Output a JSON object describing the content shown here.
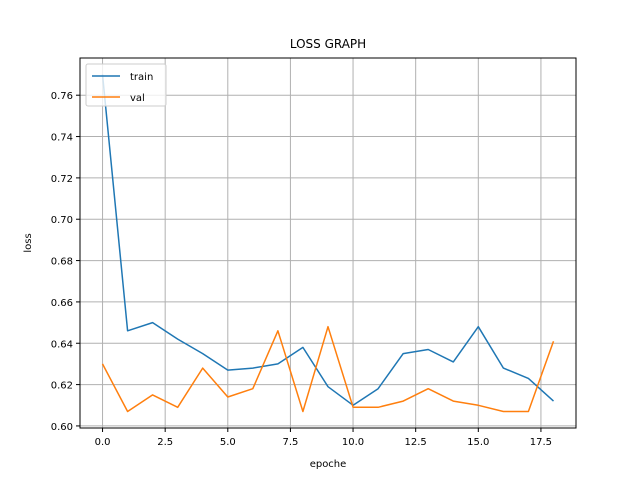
{
  "chart_data": {
    "type": "line",
    "title": "LOSS GRAPH",
    "xlabel": "epoche",
    "ylabel": "loss",
    "xlim": [
      -0.9,
      18.9
    ],
    "ylim": [
      0.599,
      0.778
    ],
    "xticks": [
      0.0,
      2.5,
      5.0,
      7.5,
      10.0,
      12.5,
      15.0,
      17.5
    ],
    "xtick_labels": [
      "0.0",
      "2.5",
      "5.0",
      "7.5",
      "10.0",
      "12.5",
      "15.0",
      "17.5"
    ],
    "yticks": [
      0.6,
      0.62,
      0.64,
      0.66,
      0.68,
      0.7,
      0.72,
      0.74,
      0.76
    ],
    "ytick_labels": [
      "0.60",
      "0.62",
      "0.64",
      "0.66",
      "0.68",
      "0.70",
      "0.72",
      "0.74",
      "0.76"
    ],
    "grid": true,
    "legend_position": "top-left",
    "x": [
      0,
      1,
      2,
      3,
      4,
      5,
      6,
      7,
      8,
      9,
      10,
      11,
      12,
      13,
      14,
      15,
      16,
      17,
      18
    ],
    "series": [
      {
        "name": "train",
        "color": "#1f77b4",
        "values": [
          0.77,
          0.646,
          0.65,
          0.642,
          0.635,
          0.627,
          0.628,
          0.63,
          0.638,
          0.619,
          0.61,
          0.618,
          0.635,
          0.637,
          0.631,
          0.648,
          0.628,
          0.623,
          0.612
        ]
      },
      {
        "name": "val",
        "color": "#ff7f0e",
        "values": [
          0.63,
          0.607,
          0.615,
          0.609,
          0.628,
          0.614,
          0.618,
          0.646,
          0.607,
          0.648,
          0.609,
          0.609,
          0.612,
          0.618,
          0.612,
          0.61,
          0.607,
          0.607,
          0.641
        ]
      }
    ]
  }
}
